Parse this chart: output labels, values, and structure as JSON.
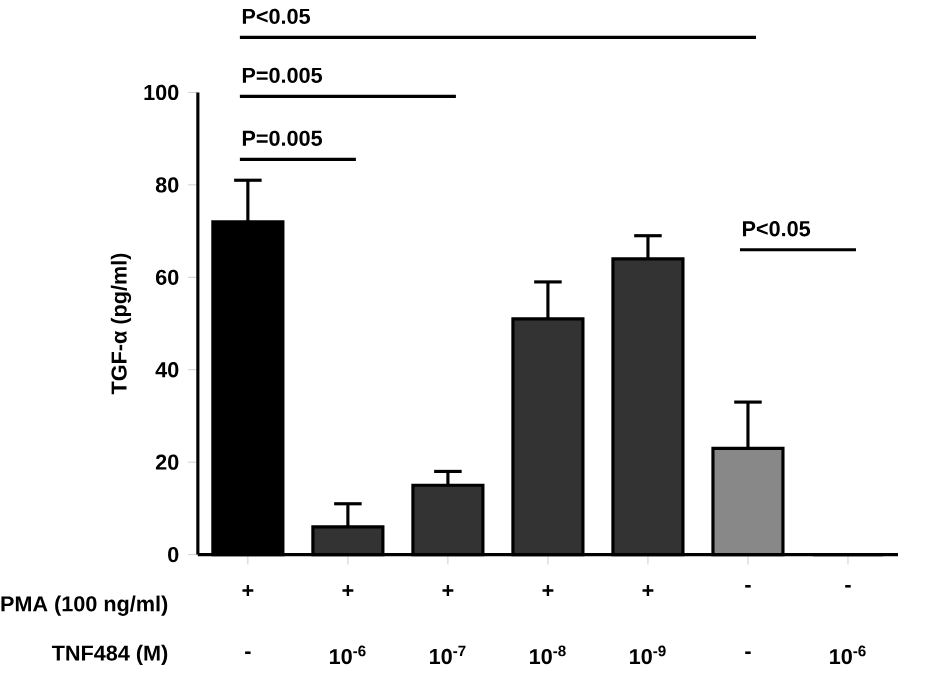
{
  "chart_data": {
    "type": "bar",
    "categories": [
      "+",
      "+",
      "+",
      "+",
      "+",
      "-",
      "-"
    ],
    "values": [
      72,
      6,
      15,
      51,
      64,
      23,
      0
    ],
    "errors": [
      9,
      5,
      3,
      8,
      5,
      10,
      null
    ],
    "colors": [
      "#000000",
      "#333333",
      "#333333",
      "#333333",
      "#333333",
      "#888888",
      "#333333"
    ],
    "ylabel": "TGF-α (pg/ml)",
    "ylim": [
      0,
      100
    ],
    "yticks": [
      0,
      20,
      40,
      60,
      80,
      100
    ],
    "annotations": [
      "P<0.05",
      "P=0.005",
      "P=0.005",
      "P<0.05",
      "PMA (100 ng/ml)",
      "TNF484 (M)",
      "-",
      "10$^{-6}$",
      "10$^{-7}$",
      "10$^{-8}$",
      "10$^{-9}$",
      "-",
      "10$^{-6}$"
    ]
  }
}
